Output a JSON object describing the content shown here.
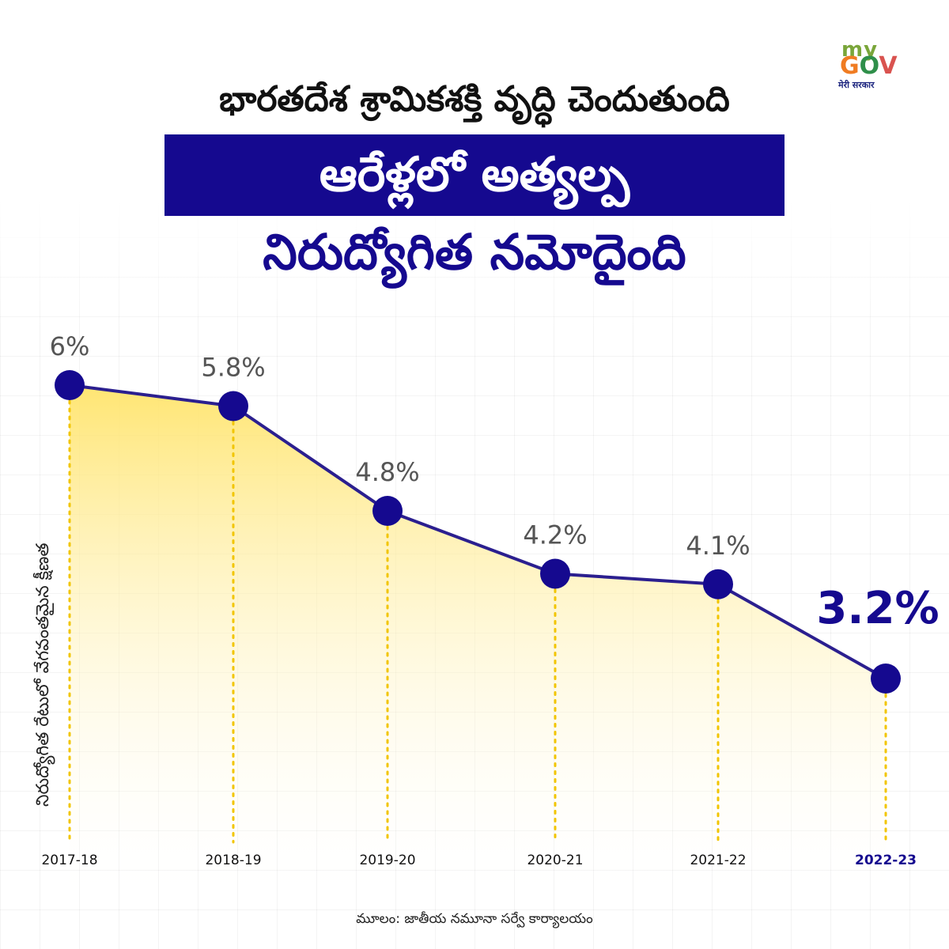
{
  "header": {
    "line1": "భారతదేశ శ్రామికశక్తి వృద్ధి చెందుతుంది",
    "line2": "ఆరేళ్లలో అత్యల్ప",
    "line3": "నిరుద్యోగిత నమోదైంది"
  },
  "logo": {
    "my": "my",
    "gov_g": "G",
    "gov_o": "O",
    "gov_v": "V",
    "subtitle": "मेरी सरकार"
  },
  "source": "మూలం: జాతీయ నమూనా సర్వే కార్యాలయం",
  "colors": {
    "line": "#2b1f8f",
    "marker": "#15098f",
    "fill_top": "#ffe46b",
    "dotted_line": "#f2c500",
    "highlight_label": "#15098f",
    "label": "#555555",
    "band": "#15098f"
  },
  "chart_data": {
    "type": "area",
    "categories": [
      "2017-18",
      "2018-19",
      "2019-20",
      "2020-21",
      "2021-22",
      "2022-23"
    ],
    "values": [
      6.0,
      5.8,
      4.8,
      4.2,
      4.1,
      3.2
    ],
    "data_labels": [
      "6%",
      "5.8%",
      "4.8%",
      "4.2%",
      "4.1%",
      "3.2%"
    ],
    "ylabel": "నిరుద్యోగిత రేటులో వేగవంతమైన క్షీణత",
    "highlight_index": 5
  }
}
